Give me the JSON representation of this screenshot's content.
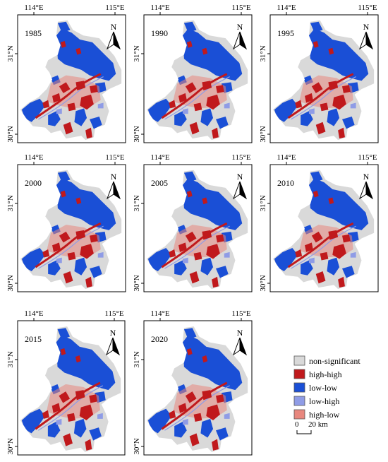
{
  "figure": {
    "panels": [
      {
        "year": "1985"
      },
      {
        "year": "1990"
      },
      {
        "year": "1995"
      },
      {
        "year": "2000"
      },
      {
        "year": "2005"
      },
      {
        "year": "2010"
      },
      {
        "year": "2015"
      },
      {
        "year": "2020"
      }
    ],
    "axis_labels": {
      "lon_west": "114°E",
      "lon_east": "115°E",
      "lat_north": "31°N",
      "lat_south": "30°N"
    },
    "north_arrow_label": "N",
    "legend": {
      "items": [
        {
          "key": "ns",
          "label": "non-significant",
          "color": "#d9d9d9"
        },
        {
          "key": "hh",
          "label": "high-high",
          "color": "#c0191c"
        },
        {
          "key": "ll",
          "label": "low-low",
          "color": "#1a4fd6"
        },
        {
          "key": "lh",
          "label": "low-high",
          "color": "#8f9ce6"
        },
        {
          "key": "hl",
          "label": "high-low",
          "color": "#e8877e"
        }
      ]
    },
    "scale_bar": {
      "start": "0",
      "end": "20 km"
    }
  }
}
